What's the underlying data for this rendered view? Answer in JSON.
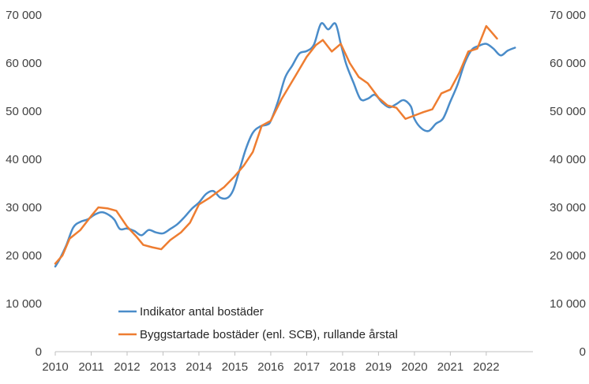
{
  "chart_data": {
    "type": "line",
    "title": "",
    "xlabel": "",
    "ylabel": "",
    "ylim": [
      0,
      70000
    ],
    "xlim": [
      2010,
      2023.3
    ],
    "grid": false,
    "legend_position": "bottom-center-inside",
    "x_ticks": [
      2010,
      2011,
      2012,
      2013,
      2014,
      2015,
      2016,
      2017,
      2018,
      2019,
      2020,
      2021,
      2022
    ],
    "x_tick_labels": [
      "2010",
      "2011",
      "2012",
      "2013",
      "2014",
      "2015",
      "2016",
      "2017",
      "2018",
      "2019",
      "2020",
      "2021",
      "2022"
    ],
    "y_ticks": [
      0,
      10000,
      20000,
      30000,
      40000,
      50000,
      60000,
      70000
    ],
    "y_tick_labels": [
      "0",
      "10 000",
      "20 000",
      "30 000",
      "40 000",
      "50 000",
      "60 000",
      "70 000"
    ],
    "y2_tick_labels": [
      "0",
      "10 000",
      "20 000",
      "30 000",
      "40 000",
      "50 000",
      "60 000",
      "70 000"
    ],
    "series": [
      {
        "name": "Indikator antal bostäder",
        "color": "#4a8cc9",
        "points": [
          [
            2010.0,
            17700
          ],
          [
            2010.12,
            19200
          ],
          [
            2010.3,
            22000
          ],
          [
            2010.5,
            25800
          ],
          [
            2010.7,
            27000
          ],
          [
            2010.9,
            27500
          ],
          [
            2011.1,
            28500
          ],
          [
            2011.3,
            29000
          ],
          [
            2011.5,
            28400
          ],
          [
            2011.65,
            27400
          ],
          [
            2011.8,
            25500
          ],
          [
            2012.0,
            25600
          ],
          [
            2012.2,
            25100
          ],
          [
            2012.4,
            24200
          ],
          [
            2012.6,
            25300
          ],
          [
            2012.8,
            24800
          ],
          [
            2013.0,
            24600
          ],
          [
            2013.2,
            25500
          ],
          [
            2013.4,
            26500
          ],
          [
            2013.6,
            28000
          ],
          [
            2013.8,
            29700
          ],
          [
            2014.0,
            31000
          ],
          [
            2014.2,
            32800
          ],
          [
            2014.4,
            33400
          ],
          [
            2014.6,
            32000
          ],
          [
            2014.8,
            32000
          ],
          [
            2014.95,
            33500
          ],
          [
            2015.1,
            37000
          ],
          [
            2015.3,
            42000
          ],
          [
            2015.5,
            45500
          ],
          [
            2015.7,
            46800
          ],
          [
            2015.9,
            47200
          ],
          [
            2016.0,
            48000
          ],
          [
            2016.2,
            52000
          ],
          [
            2016.4,
            57000
          ],
          [
            2016.6,
            59500
          ],
          [
            2016.8,
            62000
          ],
          [
            2017.0,
            62500
          ],
          [
            2017.2,
            63800
          ],
          [
            2017.4,
            68200
          ],
          [
            2017.6,
            67000
          ],
          [
            2017.8,
            68200
          ],
          [
            2017.95,
            64000
          ],
          [
            2018.1,
            59800
          ],
          [
            2018.3,
            56000
          ],
          [
            2018.5,
            52500
          ],
          [
            2018.7,
            52600
          ],
          [
            2018.9,
            53400
          ],
          [
            2019.1,
            51800
          ],
          [
            2019.3,
            50800
          ],
          [
            2019.5,
            51500
          ],
          [
            2019.7,
            52300
          ],
          [
            2019.9,
            51000
          ],
          [
            2020.0,
            48400
          ],
          [
            2020.2,
            46400
          ],
          [
            2020.4,
            45900
          ],
          [
            2020.6,
            47400
          ],
          [
            2020.8,
            48500
          ],
          [
            2021.0,
            52000
          ],
          [
            2021.2,
            55500
          ],
          [
            2021.4,
            60000
          ],
          [
            2021.6,
            62800
          ],
          [
            2021.8,
            63600
          ],
          [
            2022.0,
            64000
          ],
          [
            2022.2,
            63000
          ],
          [
            2022.4,
            61600
          ],
          [
            2022.6,
            62600
          ],
          [
            2022.8,
            63200
          ]
        ]
      },
      {
        "name": "Byggstartade bostäder (enl. SCB), rullande årstal",
        "color": "#ee7d31",
        "points": [
          [
            2010.0,
            18300
          ],
          [
            2010.2,
            20000
          ],
          [
            2010.4,
            23500
          ],
          [
            2010.7,
            25300
          ],
          [
            2011.0,
            28200
          ],
          [
            2011.2,
            30000
          ],
          [
            2011.45,
            29800
          ],
          [
            2011.7,
            29300
          ],
          [
            2012.0,
            26000
          ],
          [
            2012.25,
            24000
          ],
          [
            2012.45,
            22200
          ],
          [
            2012.7,
            21700
          ],
          [
            2012.95,
            21300
          ],
          [
            2013.2,
            23200
          ],
          [
            2013.5,
            24800
          ],
          [
            2013.75,
            26800
          ],
          [
            2014.0,
            30600
          ],
          [
            2014.3,
            32000
          ],
          [
            2014.7,
            34200
          ],
          [
            2015.0,
            36500
          ],
          [
            2015.25,
            38700
          ],
          [
            2015.5,
            41500
          ],
          [
            2015.75,
            47000
          ],
          [
            2016.0,
            48000
          ],
          [
            2016.3,
            52500
          ],
          [
            2016.7,
            57500
          ],
          [
            2017.0,
            61300
          ],
          [
            2017.25,
            63700
          ],
          [
            2017.45,
            64800
          ],
          [
            2017.7,
            62400
          ],
          [
            2017.95,
            64000
          ],
          [
            2018.2,
            60000
          ],
          [
            2018.45,
            57100
          ],
          [
            2018.7,
            55800
          ],
          [
            2019.0,
            52800
          ],
          [
            2019.25,
            51200
          ],
          [
            2019.5,
            50700
          ],
          [
            2019.75,
            48400
          ],
          [
            2020.0,
            49100
          ],
          [
            2020.25,
            49800
          ],
          [
            2020.5,
            50400
          ],
          [
            2020.75,
            53700
          ],
          [
            2021.0,
            54500
          ],
          [
            2021.25,
            58000
          ],
          [
            2021.5,
            62400
          ],
          [
            2021.75,
            63000
          ],
          [
            2022.0,
            67700
          ],
          [
            2022.15,
            66400
          ],
          [
            2022.3,
            65100
          ]
        ]
      }
    ]
  }
}
